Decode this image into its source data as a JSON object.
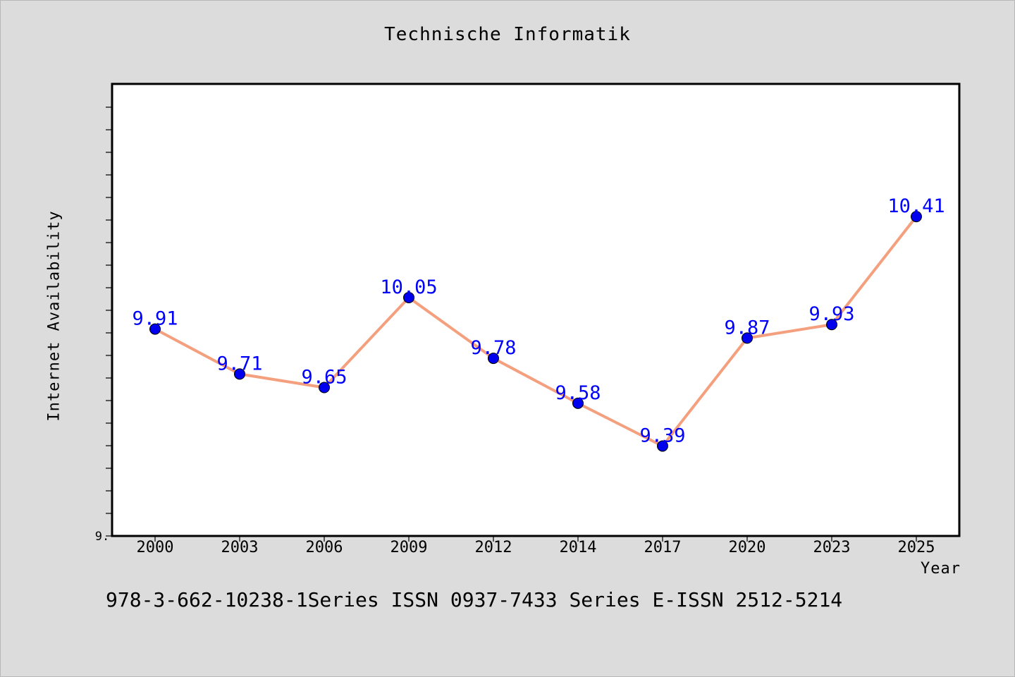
{
  "chart_data": {
    "type": "line",
    "title": "Technische Informatik",
    "xlabel": "Year",
    "ylabel": "Internet Availability",
    "categories": [
      "2000",
      "2003",
      "2006",
      "2009",
      "2012",
      "2014",
      "2017",
      "2020",
      "2023",
      "2025"
    ],
    "series": [
      {
        "values": [
          9.91,
          9.71,
          9.65,
          10.05,
          9.78,
          9.58,
          9.39,
          9.87,
          9.93,
          10.41
        ],
        "labels": [
          "9.91",
          "9.71",
          "9.65",
          "10.05",
          "9.78",
          "9.58",
          "9.39",
          "9.87",
          "9.93",
          "10.41"
        ],
        "line_color": "#f4a07e",
        "marker_color": "#0000ee",
        "label_color": "#0000ff"
      }
    ],
    "y_tick_label": "9.",
    "ylim": [
      8.99,
      11.0
    ],
    "grid": false,
    "legend": "none"
  },
  "footer": {
    "text": "978-3-662-10238-1Series ISSN 0937-7433 Series E-ISSN 2512-5214"
  },
  "colors": {
    "background": "#dcdcdc",
    "plot_background": "#ffffff"
  }
}
